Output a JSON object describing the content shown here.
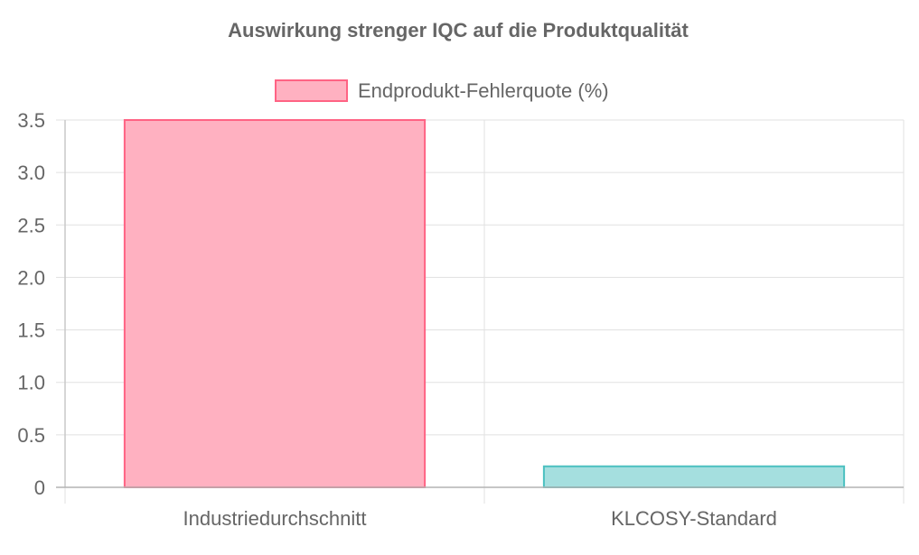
{
  "chart_data": {
    "type": "bar",
    "title": "Auswirkung strenger IQC auf die Produktqualität",
    "xlabel": "",
    "ylabel": "",
    "categories": [
      "Industriedurchschnitt",
      "KLCOSY-Standard"
    ],
    "series": [
      {
        "name": "Endprodukt-Fehlerquote (%)",
        "values": [
          3.5,
          0.2
        ],
        "fill_colors": [
          "#ffb1c1",
          "#a5dfdf"
        ],
        "border_colors": [
          "#ff6384",
          "#4bc0c0"
        ]
      }
    ],
    "ylim": [
      0,
      3.5
    ],
    "y_ticks": [
      "0",
      "0.5",
      "1.0",
      "1.5",
      "2.0",
      "2.5",
      "3.0",
      "3.5"
    ],
    "grid": true,
    "legend_position": "top-center"
  }
}
